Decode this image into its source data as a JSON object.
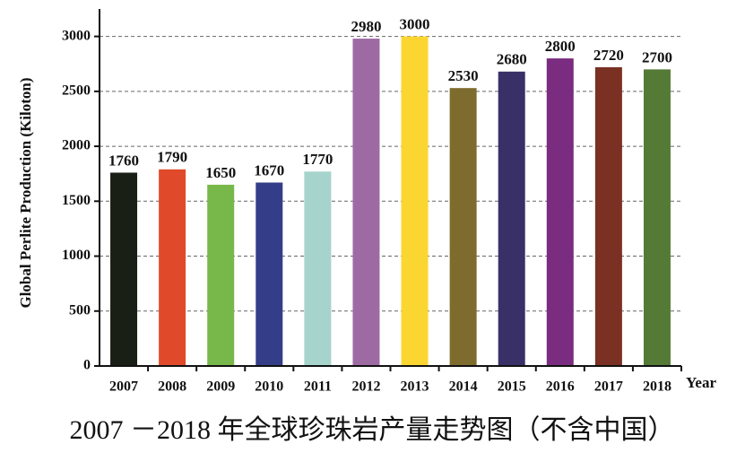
{
  "chart_data": {
    "type": "bar",
    "title": "2007 －2018 年全球珍珠岩产量走势图（不含中国）",
    "y_label": "Global Perlite Production (Kiloton)",
    "x_label": "Year",
    "categories": [
      "2007",
      "2008",
      "2009",
      "2010",
      "2011",
      "2012",
      "2013",
      "2014",
      "2015",
      "2016",
      "2017",
      "2018"
    ],
    "values": [
      1760,
      1790,
      1650,
      1670,
      1770,
      2980,
      3000,
      2530,
      2680,
      2800,
      2720,
      2700
    ],
    "colors": [
      "#1a1f16",
      "#e04a2a",
      "#78b84a",
      "#343e88",
      "#a6d4cc",
      "#9e6aa4",
      "#fcd630",
      "#7e6c2e",
      "#3a3068",
      "#7a2c80",
      "#7a3022",
      "#557a36"
    ],
    "ylim": [
      0,
      3250
    ],
    "yticks": [
      0,
      500,
      1000,
      1500,
      2000,
      2500,
      3000
    ],
    "grid": true
  }
}
